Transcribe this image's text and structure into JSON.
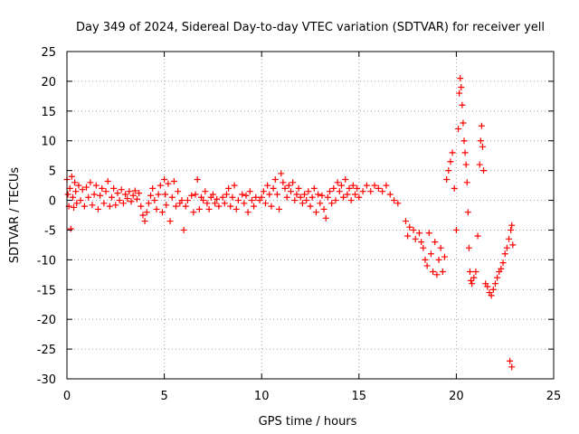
{
  "chart_data": {
    "type": "scatter",
    "title": "Day 349 of 2024, Sidereal Day-to-day VTEC variation (SDTVAR) for receiver yell",
    "xlabel": "GPS time / hours",
    "ylabel": "SDTVAR / TECUs",
    "xlim": [
      0,
      25
    ],
    "ylim": [
      -30,
      25
    ],
    "xticks": [
      0,
      5,
      10,
      15,
      20,
      25
    ],
    "yticks": [
      -30,
      -25,
      -20,
      -15,
      -10,
      -5,
      0,
      5,
      10,
      15,
      20,
      25
    ],
    "grid": true,
    "marker": "+",
    "series": [
      {
        "name": "SDTVAR",
        "color": "#ff0000",
        "points": [
          [
            0.0,
            3.5
          ],
          [
            0.05,
            1.0
          ],
          [
            0.1,
            -1.0
          ],
          [
            0.15,
            2.0
          ],
          [
            0.2,
            -4.8
          ],
          [
            0.25,
            4.0
          ],
          [
            0.3,
            0.5
          ],
          [
            0.35,
            -1.2
          ],
          [
            0.4,
            3.0
          ],
          [
            0.45,
            1.5
          ],
          [
            0.5,
            -0.5
          ],
          [
            0.6,
            2.5
          ],
          [
            0.7,
            0.0
          ],
          [
            0.8,
            1.8
          ],
          [
            0.9,
            -1.0
          ],
          [
            1.0,
            2.2
          ],
          [
            1.1,
            0.5
          ],
          [
            1.2,
            3.0
          ],
          [
            1.3,
            -0.8
          ],
          [
            1.4,
            1.0
          ],
          [
            1.5,
            2.5
          ],
          [
            1.6,
            -1.5
          ],
          [
            1.7,
            0.8
          ],
          [
            1.8,
            2.0
          ],
          [
            1.9,
            -0.5
          ],
          [
            2.0,
            1.5
          ],
          [
            2.1,
            3.2
          ],
          [
            2.2,
            -1.0
          ],
          [
            2.3,
            0.5
          ],
          [
            2.4,
            2.0
          ],
          [
            2.5,
            -0.8
          ],
          [
            2.6,
            1.2
          ],
          [
            2.7,
            0.0
          ],
          [
            2.8,
            1.8
          ],
          [
            2.9,
            -0.5
          ],
          [
            3.0,
            1.0
          ],
          [
            3.1,
            0.3
          ],
          [
            3.2,
            1.5
          ],
          [
            3.3,
            -0.2
          ],
          [
            3.4,
            0.8
          ],
          [
            3.5,
            1.6
          ],
          [
            3.6,
            0.2
          ],
          [
            3.7,
            1.2
          ],
          [
            3.8,
            -1.0
          ],
          [
            3.9,
            -2.5
          ],
          [
            4.0,
            -3.5
          ],
          [
            4.1,
            -2.0
          ],
          [
            4.2,
            -0.5
          ],
          [
            4.3,
            0.8
          ],
          [
            4.4,
            2.0
          ],
          [
            4.5,
            0.0
          ],
          [
            4.6,
            -1.5
          ],
          [
            4.7,
            1.0
          ],
          [
            4.8,
            2.5
          ],
          [
            4.9,
            -2.0
          ],
          [
            5.0,
            3.5
          ],
          [
            5.05,
            1.0
          ],
          [
            5.1,
            -0.8
          ],
          [
            5.2,
            2.8
          ],
          [
            5.3,
            -3.5
          ],
          [
            5.4,
            0.5
          ],
          [
            5.5,
            3.2
          ],
          [
            5.6,
            -1.0
          ],
          [
            5.7,
            1.5
          ],
          [
            5.8,
            -0.5
          ],
          [
            5.9,
            0.0
          ],
          [
            6.0,
            -5.0
          ],
          [
            6.1,
            -1.0
          ],
          [
            6.2,
            0.0
          ],
          [
            6.4,
            0.8
          ],
          [
            6.5,
            -2.0
          ],
          [
            6.6,
            1.0
          ],
          [
            6.7,
            3.5
          ],
          [
            6.8,
            -1.5
          ],
          [
            6.9,
            0.5
          ],
          [
            7.0,
            0.0
          ],
          [
            7.1,
            1.5
          ],
          [
            7.2,
            -0.5
          ],
          [
            7.3,
            -1.5
          ],
          [
            7.4,
            0.5
          ],
          [
            7.5,
            1.0
          ],
          [
            7.6,
            -0.5
          ],
          [
            7.7,
            0.2
          ],
          [
            7.8,
            -1.0
          ],
          [
            8.0,
            0.5
          ],
          [
            8.1,
            -0.5
          ],
          [
            8.2,
            1.0
          ],
          [
            8.3,
            2.0
          ],
          [
            8.4,
            -1.0
          ],
          [
            8.5,
            0.5
          ],
          [
            8.6,
            2.5
          ],
          [
            8.7,
            -1.5
          ],
          [
            8.8,
            0.0
          ],
          [
            9.0,
            1.0
          ],
          [
            9.1,
            -0.5
          ],
          [
            9.2,
            0.8
          ],
          [
            9.3,
            -2.0
          ],
          [
            9.4,
            1.5
          ],
          [
            9.5,
            0.0
          ],
          [
            9.6,
            -1.0
          ],
          [
            9.7,
            0.5
          ],
          [
            9.9,
            0.0
          ],
          [
            10.0,
            0.5
          ],
          [
            10.1,
            1.5
          ],
          [
            10.2,
            -0.5
          ],
          [
            10.3,
            2.5
          ],
          [
            10.4,
            1.0
          ],
          [
            10.5,
            -1.0
          ],
          [
            10.6,
            2.0
          ],
          [
            10.7,
            3.5
          ],
          [
            10.8,
            1.0
          ],
          [
            10.9,
            -1.5
          ],
          [
            11.0,
            4.5
          ],
          [
            11.1,
            3.0
          ],
          [
            11.2,
            2.0
          ],
          [
            11.3,
            0.5
          ],
          [
            11.4,
            2.5
          ],
          [
            11.5,
            1.5
          ],
          [
            11.6,
            3.0
          ],
          [
            11.7,
            0.0
          ],
          [
            11.8,
            1.0
          ],
          [
            11.9,
            2.0
          ],
          [
            12.0,
            0.5
          ],
          [
            12.1,
            -0.5
          ],
          [
            12.2,
            1.0
          ],
          [
            12.3,
            0.0
          ],
          [
            12.4,
            1.5
          ],
          [
            12.5,
            -1.0
          ],
          [
            12.6,
            0.5
          ],
          [
            12.7,
            2.0
          ],
          [
            12.8,
            -2.0
          ],
          [
            12.9,
            1.0
          ],
          [
            13.0,
            -0.5
          ],
          [
            13.1,
            0.8
          ],
          [
            13.2,
            -1.5
          ],
          [
            13.3,
            -3.0
          ],
          [
            13.4,
            0.5
          ],
          [
            13.5,
            1.5
          ],
          [
            13.6,
            -0.5
          ],
          [
            13.7,
            2.0
          ],
          [
            13.8,
            0.0
          ],
          [
            13.9,
            3.0
          ],
          [
            14.0,
            1.5
          ],
          [
            14.1,
            2.5
          ],
          [
            14.2,
            0.5
          ],
          [
            14.3,
            3.5
          ],
          [
            14.4,
            1.0
          ],
          [
            14.5,
            2.0
          ],
          [
            14.6,
            0.0
          ],
          [
            14.7,
            2.5
          ],
          [
            14.8,
            1.0
          ],
          [
            14.9,
            2.0
          ],
          [
            15.0,
            0.5
          ],
          [
            15.2,
            1.5
          ],
          [
            15.4,
            2.5
          ],
          [
            15.6,
            1.5
          ],
          [
            15.8,
            2.5
          ],
          [
            16.0,
            2.0
          ],
          [
            16.2,
            1.5
          ],
          [
            16.4,
            2.5
          ],
          [
            16.6,
            1.0
          ],
          [
            16.8,
            0.0
          ],
          [
            17.0,
            -0.5
          ],
          [
            17.4,
            -3.5
          ],
          [
            17.5,
            -6.0
          ],
          [
            17.6,
            -4.5
          ],
          [
            17.8,
            -5.0
          ],
          [
            17.9,
            -6.5
          ],
          [
            18.1,
            -5.5
          ],
          [
            18.2,
            -7.0
          ],
          [
            18.3,
            -8.0
          ],
          [
            18.4,
            -10.0
          ],
          [
            18.5,
            -11.0
          ],
          [
            18.6,
            -5.5
          ],
          [
            18.7,
            -9.0
          ],
          [
            18.8,
            -12.0
          ],
          [
            18.9,
            -7.0
          ],
          [
            19.0,
            -12.5
          ],
          [
            19.1,
            -10.0
          ],
          [
            19.2,
            -8.0
          ],
          [
            19.3,
            -12.0
          ],
          [
            19.4,
            -9.5
          ],
          [
            19.5,
            3.5
          ],
          [
            19.6,
            5.0
          ],
          [
            19.7,
            6.5
          ],
          [
            19.8,
            8.0
          ],
          [
            19.9,
            2.0
          ],
          [
            20.0,
            -5.0
          ],
          [
            20.1,
            12.0
          ],
          [
            20.15,
            18.0
          ],
          [
            20.2,
            20.5
          ],
          [
            20.25,
            19.0
          ],
          [
            20.3,
            16.0
          ],
          [
            20.35,
            13.0
          ],
          [
            20.4,
            10.0
          ],
          [
            20.45,
            8.0
          ],
          [
            20.5,
            6.0
          ],
          [
            20.55,
            3.0
          ],
          [
            20.6,
            -2.0
          ],
          [
            20.65,
            -8.0
          ],
          [
            20.7,
            -12.0
          ],
          [
            20.75,
            -13.5
          ],
          [
            20.8,
            -14.0
          ],
          [
            20.9,
            -13.0
          ],
          [
            21.0,
            -12.0
          ],
          [
            21.1,
            -6.0
          ],
          [
            21.2,
            6.0
          ],
          [
            21.25,
            10.0
          ],
          [
            21.3,
            12.5
          ],
          [
            21.35,
            9.0
          ],
          [
            21.4,
            5.0
          ],
          [
            21.5,
            -14.0
          ],
          [
            21.6,
            -14.5
          ],
          [
            21.7,
            -15.5
          ],
          [
            21.8,
            -16.0
          ],
          [
            21.9,
            -15.0
          ],
          [
            22.0,
            -14.0
          ],
          [
            22.1,
            -13.0
          ],
          [
            22.2,
            -12.0
          ],
          [
            22.3,
            -11.5
          ],
          [
            22.4,
            -10.5
          ],
          [
            22.5,
            -9.0
          ],
          [
            22.6,
            -8.0
          ],
          [
            22.7,
            -6.5
          ],
          [
            22.8,
            -5.0
          ],
          [
            22.85,
            -4.2
          ],
          [
            22.9,
            -7.5
          ],
          [
            22.75,
            -27.0
          ],
          [
            22.85,
            -28.0
          ]
        ]
      }
    ]
  }
}
